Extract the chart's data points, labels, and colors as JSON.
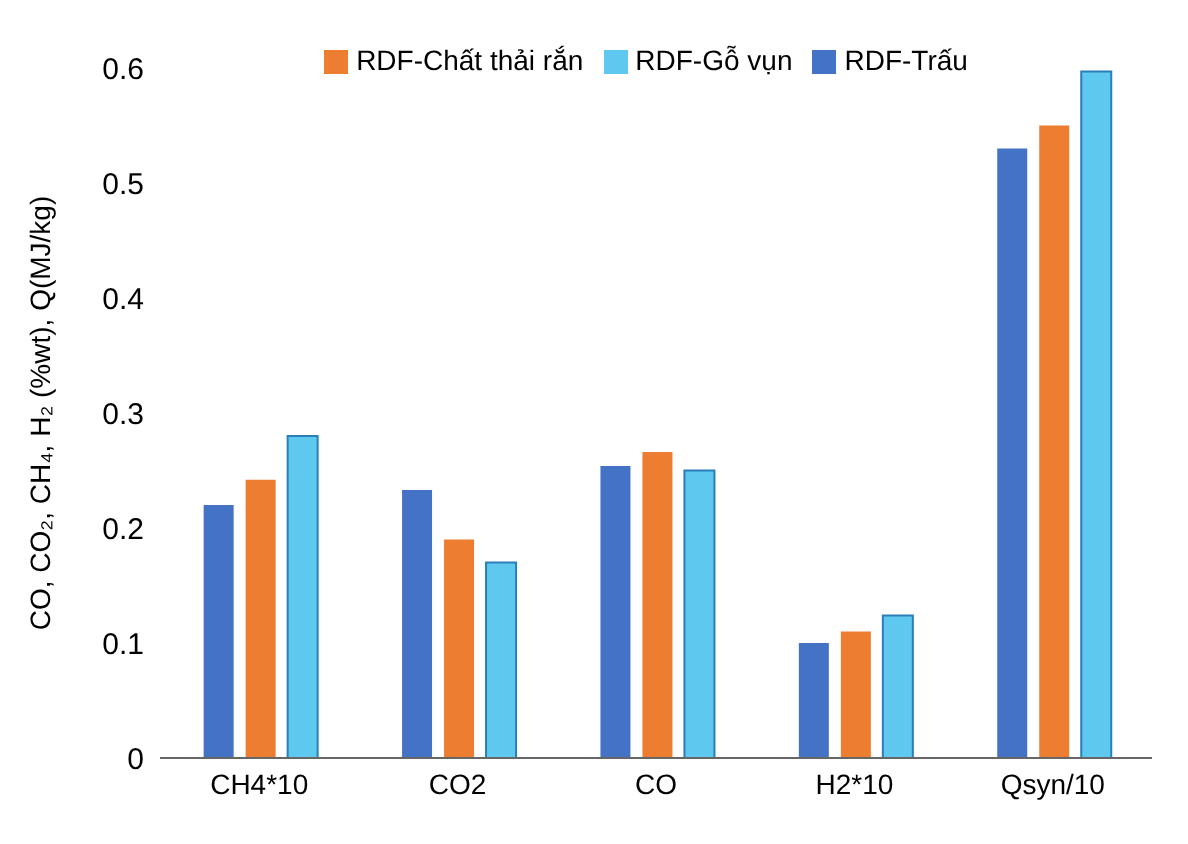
{
  "chart_data": {
    "type": "bar",
    "ylabel": "CO, CO₂, CH₄, H₂ (%wt), Q(MJ/kg)",
    "categories": [
      "CH4*10",
      "CO2",
      "CO",
      "H2*10",
      "Qsyn/10"
    ],
    "series": [
      {
        "name": "RDF-Trấu",
        "color": "#4472c4",
        "values": [
          0.22,
          0.233,
          0.254,
          0.1,
          0.53
        ]
      },
      {
        "name": "RDF-Chất thải rắn",
        "color": "#ed7d31",
        "values": [
          0.242,
          0.19,
          0.266,
          0.11,
          0.55
        ]
      },
      {
        "name": "RDF-Gỗ vụn",
        "color": "#5fc8ef",
        "values": [
          0.28,
          0.17,
          0.25,
          0.124,
          0.597
        ]
      }
    ],
    "ylim": [
      0,
      0.6
    ],
    "yticks": [
      0,
      0.1,
      0.2,
      0.3,
      0.4,
      0.5,
      0.6
    ],
    "grid": false,
    "legend": "top"
  }
}
